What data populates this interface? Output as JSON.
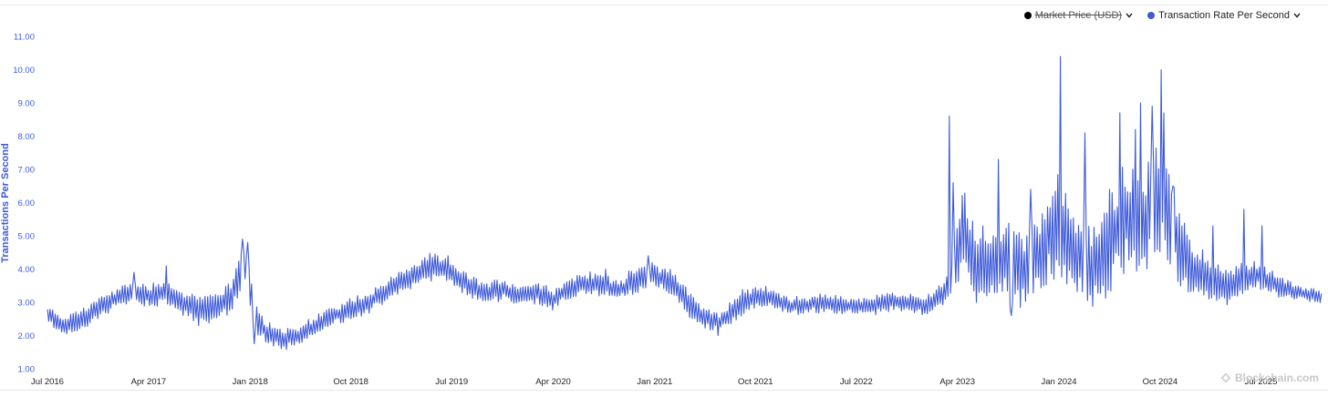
{
  "legend": [
    {
      "label": "Market Price (USD)",
      "color": "#000000",
      "hidden": true
    },
    {
      "label": "Transaction Rate Per Second",
      "color": "#3e5ad9",
      "hidden": false
    }
  ],
  "watermark": "Blockchain.com",
  "chart_data": {
    "type": "line",
    "title": "",
    "xlabel": "",
    "ylabel": "Transactions Per Second",
    "ylim": [
      1.0,
      11.0
    ],
    "yticks": [
      "1.00",
      "2.00",
      "3.00",
      "4.00",
      "5.00",
      "6.00",
      "7.00",
      "8.00",
      "9.00",
      "10.00",
      "11.00"
    ],
    "xticks": [
      "Jul 2016",
      "Apr 2017",
      "Jan 2018",
      "Oct 2018",
      "Jul 2019",
      "Apr 2020",
      "Jan 2021",
      "Oct 2021",
      "Jul 2022",
      "Apr 2023",
      "Jan 2024",
      "Oct 2024",
      "Jul 2025"
    ],
    "xrange": [
      "2016-07-01",
      "2025-12-15"
    ],
    "grid": false,
    "legend_position": "top-right",
    "series": [
      {
        "name": "Transaction Rate Per Second",
        "color": "#3e5ad9",
        "x": [
          "2016-07-01",
          "2016-08-15",
          "2016-10-01",
          "2016-11-15",
          "2017-01-01",
          "2017-02-15",
          "2017-04-01",
          "2017-05-15",
          "2017-07-01",
          "2017-08-15",
          "2017-10-01",
          "2017-11-15",
          "2017-12-20",
          "2018-01-15",
          "2018-02-15",
          "2018-04-01",
          "2018-05-15",
          "2018-07-01",
          "2018-08-15",
          "2018-10-01",
          "2018-11-15",
          "2019-01-01",
          "2019-02-15",
          "2019-04-01",
          "2019-05-15",
          "2019-07-01",
          "2019-08-15",
          "2019-10-01",
          "2019-11-15",
          "2020-01-01",
          "2020-02-15",
          "2020-04-01",
          "2020-05-15",
          "2020-07-01",
          "2020-08-15",
          "2020-10-01",
          "2020-11-15",
          "2021-01-01",
          "2021-02-15",
          "2021-04-01",
          "2021-05-15",
          "2021-07-01",
          "2021-08-15",
          "2021-10-01",
          "2021-11-15",
          "2022-01-01",
          "2022-02-15",
          "2022-04-01",
          "2022-05-15",
          "2022-07-01",
          "2022-08-15",
          "2022-10-01",
          "2022-11-15",
          "2023-01-01",
          "2023-02-15",
          "2023-03-15",
          "2023-04-01",
          "2023-04-15",
          "2023-05-15",
          "2023-07-01",
          "2023-08-15",
          "2023-10-01",
          "2023-11-15",
          "2024-01-01",
          "2024-02-15",
          "2024-04-01",
          "2024-05-15",
          "2024-07-01",
          "2024-08-15",
          "2024-10-01",
          "2024-11-15",
          "2025-01-01",
          "2025-02-15",
          "2025-04-01",
          "2025-05-15",
          "2025-07-01",
          "2025-08-15",
          "2025-10-01",
          "2025-11-15",
          "2025-12-15"
        ],
        "y": [
          2.6,
          2.3,
          2.5,
          2.8,
          3.1,
          3.3,
          3.2,
          3.3,
          3.0,
          2.7,
          2.9,
          3.2,
          4.2,
          2.5,
          2.1,
          1.9,
          2.0,
          2.3,
          2.6,
          2.8,
          3.0,
          3.3,
          3.6,
          3.9,
          4.1,
          3.9,
          3.5,
          3.3,
          3.4,
          3.2,
          3.3,
          3.1,
          3.4,
          3.6,
          3.5,
          3.4,
          3.7,
          3.8,
          3.6,
          3.0,
          2.5,
          2.4,
          2.9,
          3.2,
          3.1,
          2.9,
          2.9,
          3.0,
          2.9,
          2.9,
          2.9,
          3.0,
          3.0,
          2.9,
          3.2,
          3.6,
          4.5,
          5.2,
          4.2,
          4.0,
          4.4,
          3.9,
          4.6,
          5.6,
          4.3,
          3.9,
          4.9,
          5.5,
          5.3,
          6.3,
          4.8,
          3.9,
          3.6,
          3.5,
          3.7,
          3.8,
          3.5,
          3.3,
          3.2,
          3.1
        ],
        "amplitude": [
          0.25,
          0.25,
          0.3,
          0.3,
          0.3,
          0.3,
          0.35,
          0.35,
          0.35,
          0.4,
          0.45,
          0.5,
          0.6,
          0.4,
          0.3,
          0.3,
          0.3,
          0.3,
          0.3,
          0.3,
          0.3,
          0.3,
          0.35,
          0.35,
          0.35,
          0.3,
          0.3,
          0.3,
          0.3,
          0.3,
          0.3,
          0.3,
          0.3,
          0.3,
          0.3,
          0.3,
          0.35,
          0.4,
          0.4,
          0.4,
          0.3,
          0.3,
          0.35,
          0.3,
          0.3,
          0.25,
          0.25,
          0.25,
          0.25,
          0.25,
          0.25,
          0.25,
          0.25,
          0.25,
          0.3,
          0.4,
          1.0,
          1.2,
          1.1,
          1.0,
          1.2,
          1.1,
          1.3,
          1.4,
          1.2,
          1.1,
          1.5,
          1.5,
          1.5,
          1.6,
          1.2,
          0.8,
          0.6,
          0.5,
          0.45,
          0.4,
          0.3,
          0.25,
          0.2,
          0.2
        ],
        "spikes": [
          {
            "x": "2017-02-20",
            "y": 3.9
          },
          {
            "x": "2017-05-20",
            "y": 4.1
          },
          {
            "x": "2017-12-10",
            "y": 4.9
          },
          {
            "x": "2017-12-25",
            "y": 4.8
          },
          {
            "x": "2018-01-12",
            "y": 1.75
          },
          {
            "x": "2019-05-25",
            "y": 4.4
          },
          {
            "x": "2019-06-20",
            "y": 4.4
          },
          {
            "x": "2020-08-20",
            "y": 4.0
          },
          {
            "x": "2020-12-15",
            "y": 4.4
          },
          {
            "x": "2021-06-20",
            "y": 2.0
          },
          {
            "x": "2023-03-10",
            "y": 8.6
          },
          {
            "x": "2023-03-20",
            "y": 6.6
          },
          {
            "x": "2023-07-20",
            "y": 7.3
          },
          {
            "x": "2023-08-25",
            "y": 2.6
          },
          {
            "x": "2023-10-15",
            "y": 6.4
          },
          {
            "x": "2024-01-05",
            "y": 10.4
          },
          {
            "x": "2024-03-10",
            "y": 8.1
          },
          {
            "x": "2024-06-15",
            "y": 8.7
          },
          {
            "x": "2024-07-25",
            "y": 8.2
          },
          {
            "x": "2024-08-10",
            "y": 9.0
          },
          {
            "x": "2024-09-10",
            "y": 8.9
          },
          {
            "x": "2024-10-05",
            "y": 10.0
          },
          {
            "x": "2024-10-10",
            "y": 8.7
          },
          {
            "x": "2024-11-05",
            "y": 6.5
          },
          {
            "x": "2025-02-20",
            "y": 5.3
          },
          {
            "x": "2025-05-15",
            "y": 5.8
          },
          {
            "x": "2025-07-05",
            "y": 5.3
          }
        ]
      }
    ]
  }
}
